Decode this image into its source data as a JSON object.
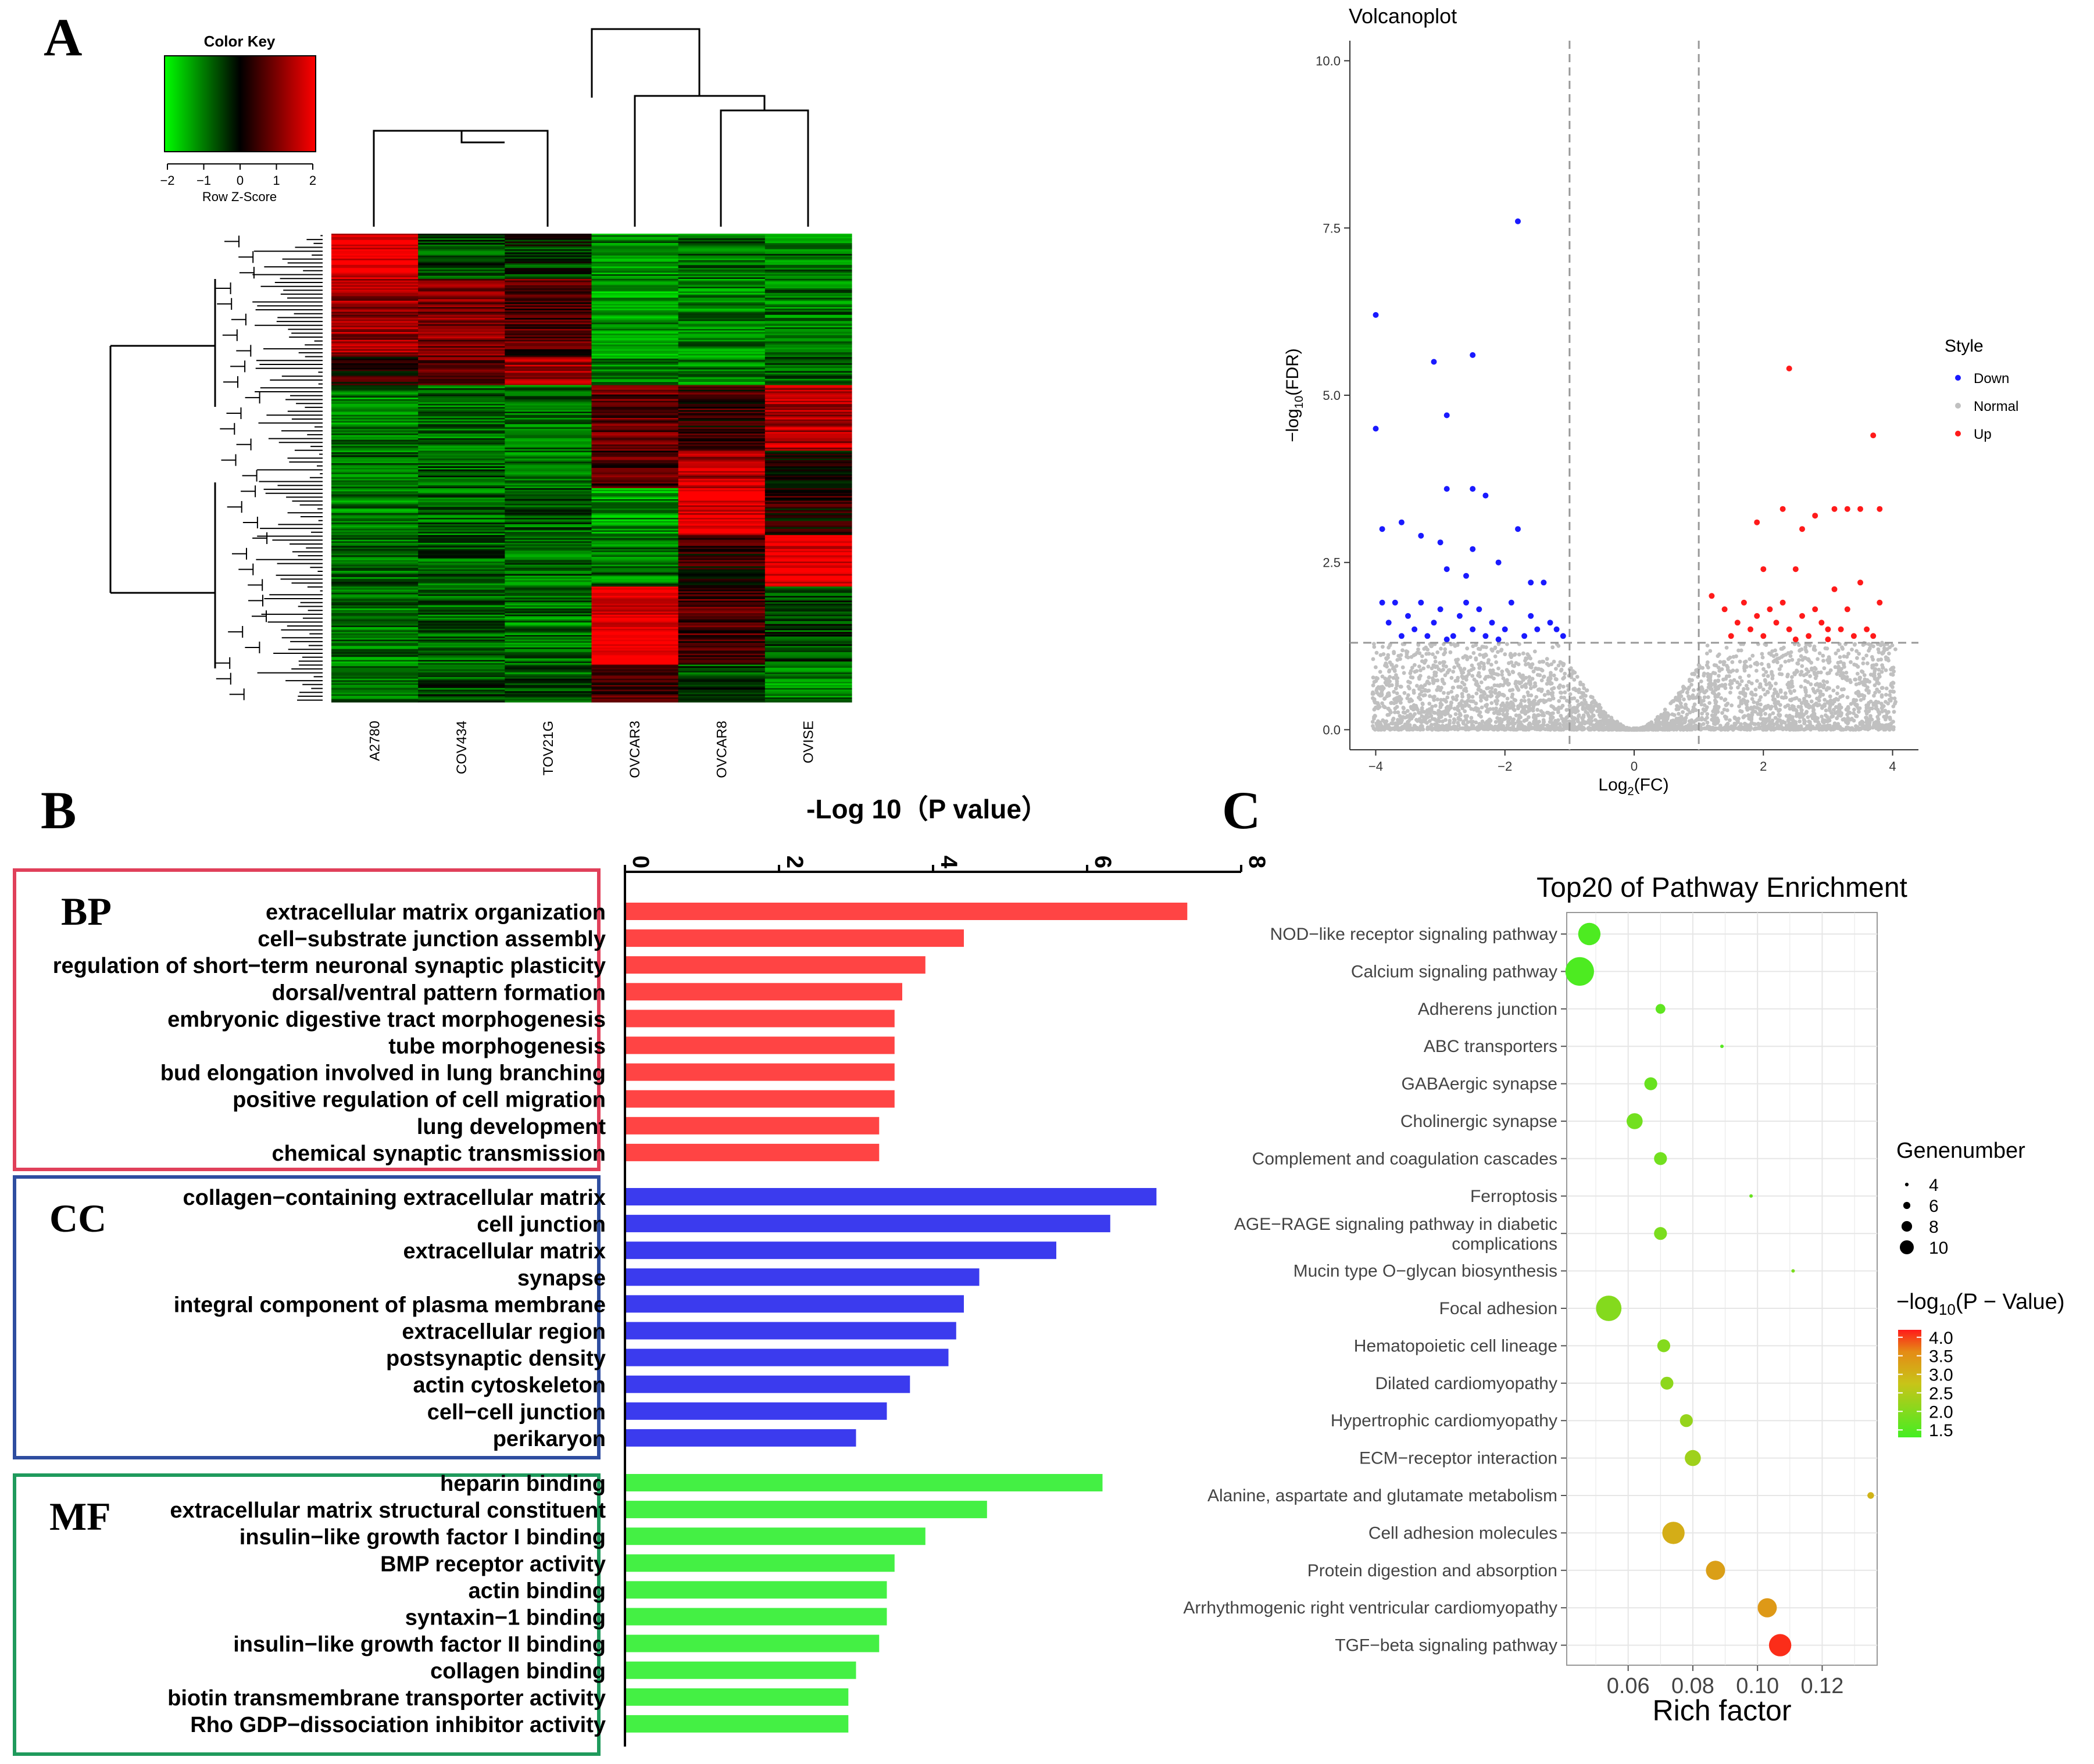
{
  "panels": {
    "a": "A",
    "b": "B",
    "c": "C"
  },
  "chart_data": [
    {
      "type": "heatmap",
      "panel": "A",
      "title": "Color Key",
      "color_key": {
        "label": "Row Z-Score",
        "ticks": [
          "-2",
          "-1",
          "0",
          "1",
          "2"
        ],
        "range": [
          -2,
          2
        ],
        "colors": [
          "#00ff00",
          "#000000",
          "#ff0000"
        ]
      },
      "samples": [
        "A2780",
        "COV434",
        "TOV21G",
        "OVCAR3",
        "OVCAR8",
        "OVISE"
      ],
      "row_blocks": [
        {
          "fraction": 0.095,
          "values": [
            1.8,
            -0.6,
            -0.4,
            -1.0,
            -0.8,
            -0.9
          ]
        },
        {
          "fraction": 0.165,
          "values": [
            1.2,
            1.0,
            0.6,
            -1.2,
            -1.0,
            -0.9
          ]
        },
        {
          "fraction": 0.06,
          "values": [
            0.3,
            0.7,
            1.2,
            -1.1,
            -1.0,
            -0.8
          ]
        },
        {
          "fraction": 0.14,
          "values": [
            -1.0,
            -0.8,
            -0.9,
            0.8,
            0.4,
            1.4
          ]
        },
        {
          "fraction": 0.08,
          "values": [
            -0.8,
            -0.7,
            -0.9,
            0.6,
            1.4,
            0.0
          ]
        },
        {
          "fraction": 0.1,
          "values": [
            -0.9,
            -0.8,
            -0.7,
            -1.2,
            1.8,
            0.2
          ]
        },
        {
          "fraction": 0.11,
          "values": [
            -0.8,
            -0.7,
            -0.8,
            -0.9,
            0.3,
            1.9
          ]
        },
        {
          "fraction": 0.165,
          "values": [
            -0.9,
            -0.8,
            -0.9,
            1.9,
            0.6,
            -0.5
          ]
        },
        {
          "fraction": 0.085,
          "values": [
            -0.7,
            -0.6,
            -0.7,
            0.5,
            -0.6,
            -1.0
          ]
        }
      ]
    },
    {
      "type": "scatter",
      "panel": "A",
      "title": "Volcanoplot",
      "xlabel": "Log2(FC)",
      "ylabel": "−log10(FDR)",
      "xlim": [
        -4.4,
        4.4
      ],
      "ylim": [
        -0.3,
        10.3
      ],
      "xticks": [
        -4,
        -2,
        0,
        2,
        4
      ],
      "yticks": [
        0.0,
        2.5,
        5.0,
        7.5,
        10.0
      ],
      "ytick_labels": [
        "0.0",
        "2.5",
        "5.0",
        "7.5",
        "10.0"
      ],
      "vlines": [
        -1,
        1
      ],
      "hline": 1.3,
      "legend": {
        "title": "Style",
        "entries": [
          "Down",
          "Normal",
          "Up"
        ],
        "position": "right"
      },
      "series": [
        {
          "name": "Down",
          "color": "#1a1aff",
          "points": [
            [
              -4.0,
              6.2
            ],
            [
              -4.0,
              4.5
            ],
            [
              -3.9,
              3.0
            ],
            [
              -3.6,
              3.1
            ],
            [
              -3.1,
              5.5
            ],
            [
              -2.9,
              4.7
            ],
            [
              -2.9,
              3.6
            ],
            [
              -2.5,
              5.6
            ],
            [
              -2.5,
              3.6
            ],
            [
              -2.3,
              3.5
            ],
            [
              -1.8,
              7.6
            ],
            [
              -1.8,
              3.0
            ],
            [
              -3.3,
              2.9
            ],
            [
              -3.0,
              2.8
            ],
            [
              -2.9,
              2.4
            ],
            [
              -2.5,
              2.7
            ],
            [
              -2.6,
              2.3
            ],
            [
              -2.1,
              2.5
            ],
            [
              -1.6,
              2.2
            ],
            [
              -1.4,
              2.2
            ],
            [
              -3.9,
              1.9
            ],
            [
              -3.8,
              1.6
            ],
            [
              -3.7,
              1.9
            ],
            [
              -3.5,
              1.7
            ],
            [
              -3.4,
              1.5
            ],
            [
              -3.3,
              1.9
            ],
            [
              -3.2,
              1.4
            ],
            [
              -3.1,
              1.6
            ],
            [
              -3.0,
              1.8
            ],
            [
              -2.8,
              1.4
            ],
            [
              -2.7,
              1.7
            ],
            [
              -2.6,
              1.9
            ],
            [
              -2.5,
              1.5
            ],
            [
              -2.4,
              1.8
            ],
            [
              -2.3,
              1.4
            ],
            [
              -2.2,
              1.6
            ],
            [
              -2.0,
              1.5
            ],
            [
              -1.9,
              1.9
            ],
            [
              -1.7,
              1.4
            ],
            [
              -1.6,
              1.7
            ],
            [
              -1.5,
              1.5
            ],
            [
              -1.3,
              1.6
            ],
            [
              -1.1,
              1.4
            ],
            [
              -3.6,
              1.4
            ],
            [
              -2.9,
              1.35
            ],
            [
              -2.1,
              1.35
            ],
            [
              -1.2,
              1.5
            ]
          ]
        },
        {
          "name": "Up",
          "color": "#ff1a1a",
          "points": [
            [
              2.4,
              5.4
            ],
            [
              3.7,
              4.4
            ],
            [
              3.5,
              3.3
            ],
            [
              3.3,
              3.3
            ],
            [
              3.1,
              3.3
            ],
            [
              2.8,
              3.2
            ],
            [
              2.3,
              3.3
            ],
            [
              2.6,
              3.0
            ],
            [
              1.9,
              3.1
            ],
            [
              3.8,
              3.3
            ],
            [
              2.0,
              2.4
            ],
            [
              2.5,
              2.4
            ],
            [
              1.2,
              2.0
            ],
            [
              1.4,
              1.8
            ],
            [
              1.6,
              1.6
            ],
            [
              1.7,
              1.9
            ],
            [
              1.8,
              1.5
            ],
            [
              1.9,
              1.7
            ],
            [
              2.0,
              1.4
            ],
            [
              2.1,
              1.8
            ],
            [
              2.2,
              1.6
            ],
            [
              2.3,
              1.9
            ],
            [
              2.4,
              1.5
            ],
            [
              2.6,
              1.7
            ],
            [
              2.7,
              1.4
            ],
            [
              2.8,
              1.8
            ],
            [
              2.9,
              1.6
            ],
            [
              3.0,
              1.5
            ],
            [
              3.1,
              2.1
            ],
            [
              3.2,
              1.5
            ],
            [
              3.3,
              1.8
            ],
            [
              3.4,
              1.4
            ],
            [
              3.5,
              2.2
            ],
            [
              3.6,
              1.5
            ],
            [
              3.8,
              1.9
            ],
            [
              1.5,
              1.4
            ],
            [
              2.5,
              1.35
            ],
            [
              3.0,
              1.35
            ],
            [
              3.7,
              1.4
            ]
          ]
        }
      ]
    },
    {
      "type": "bar",
      "panel": "B",
      "orientation": "horizontal",
      "title": "-Log 10（P value）",
      "xlim": [
        0,
        8
      ],
      "xticks": [
        0,
        2,
        4,
        6,
        8
      ],
      "groups": [
        {
          "name": "BP",
          "color": "#ff4444",
          "box_color": "#e0405a",
          "categories": [
            "extracellular matrix organization",
            "cell−substrate junction assembly",
            "regulation of short−term neuronal synaptic plasticity",
            "dorsal/ventral pattern formation",
            "embryonic digestive tract morphogenesis",
            "tube morphogenesis",
            "bud elongation involved in lung branching",
            "positive regulation of cell migration",
            "lung development",
            "chemical synaptic transmission"
          ],
          "values": [
            7.3,
            4.4,
            3.9,
            3.6,
            3.5,
            3.5,
            3.5,
            3.5,
            3.3,
            3.3
          ]
        },
        {
          "name": "CC",
          "color": "#3b3bee",
          "box_color": "#2e4da0",
          "categories": [
            "collagen−containing extracellular matrix",
            "cell junction",
            "extracellular matrix",
            "synapse",
            "integral component of plasma membrane",
            "extracellular region",
            "postsynaptic density",
            "actin cytoskeleton",
            "cell−cell junction",
            "perikaryon"
          ],
          "values": [
            6.9,
            6.3,
            5.6,
            4.6,
            4.4,
            4.3,
            4.2,
            3.7,
            3.4,
            3.0
          ]
        },
        {
          "name": "MF",
          "color": "#44f044",
          "box_color": "#1f9a5c",
          "categories": [
            "heparin binding",
            "extracellular matrix structural constituent",
            "insulin−like growth factor I binding",
            "BMP receptor activity",
            "actin binding",
            "syntaxin−1 binding",
            "insulin−like growth factor II binding",
            "collagen binding",
            "biotin transmembrane transporter activity",
            "Rho GDP−dissociation inhibitor activity"
          ],
          "values": [
            6.2,
            4.7,
            3.9,
            3.5,
            3.4,
            3.4,
            3.3,
            3.0,
            2.9,
            2.9
          ]
        }
      ]
    },
    {
      "type": "scatter",
      "panel": "C",
      "title": "Top20 of Pathway Enrichment",
      "xlabel": "Rich factor",
      "xlim": [
        0.041,
        0.137
      ],
      "xticks": [
        0.06,
        0.08,
        0.1,
        0.12
      ],
      "xtick_labels": [
        "0.06",
        "0.08",
        "0.10",
        "0.12"
      ],
      "size_legend": {
        "title": "Genenumber",
        "values": [
          4,
          6,
          8,
          10
        ],
        "labels": [
          "4",
          "6",
          "8",
          "10"
        ]
      },
      "color_legend": {
        "title": "−log10(P − Value)",
        "ticks": [
          1.5,
          2.0,
          2.5,
          3.0,
          3.5,
          4.0
        ],
        "tick_labels": [
          "1.5",
          "2.0",
          "2.5",
          "3.0",
          "3.5",
          "4.0"
        ],
        "range": [
          1.3,
          4.2
        ]
      },
      "pathways": [
        {
          "name": "NOD−like receptor signaling pathway",
          "rich": 0.048,
          "genes": 9,
          "p": 1.4
        },
        {
          "name": "Calcium signaling pathway",
          "rich": 0.045,
          "genes": 11,
          "p": 1.4
        },
        {
          "name": "Adherens junction",
          "rich": 0.07,
          "genes": 5,
          "p": 1.6
        },
        {
          "name": "ABC transporters",
          "rich": 0.089,
          "genes": 3,
          "p": 1.5
        },
        {
          "name": "GABAergic synapse",
          "rich": 0.067,
          "genes": 6,
          "p": 1.7
        },
        {
          "name": "Cholinergic synapse",
          "rich": 0.062,
          "genes": 7,
          "p": 1.8
        },
        {
          "name": "Complement and coagulation cascades",
          "rich": 0.07,
          "genes": 6,
          "p": 1.8
        },
        {
          "name": "Ferroptosis",
          "rich": 0.098,
          "genes": 3,
          "p": 1.7
        },
        {
          "name": "AGE−RAGE signaling pathway in diabetic complications",
          "label_lines": [
            "AGE−RAGE signaling pathway in diabetic",
            "complications"
          ],
          "rich": 0.07,
          "genes": 6,
          "p": 1.9
        },
        {
          "name": "Mucin type O−glycan biosynthesis",
          "rich": 0.111,
          "genes": 3,
          "p": 1.9
        },
        {
          "name": "Focal adhesion",
          "rich": 0.054,
          "genes": 10,
          "p": 2.0
        },
        {
          "name": "Hematopoietic cell lineage",
          "rich": 0.071,
          "genes": 6,
          "p": 2.0
        },
        {
          "name": "Dilated cardiomyopathy",
          "rich": 0.072,
          "genes": 6,
          "p": 2.1
        },
        {
          "name": "Hypertrophic cardiomyopathy",
          "rich": 0.078,
          "genes": 6,
          "p": 2.2
        },
        {
          "name": "ECM−receptor interaction",
          "rich": 0.08,
          "genes": 7,
          "p": 2.3
        },
        {
          "name": "Alanine, aspartate and glutamate metabolism",
          "rich": 0.135,
          "genes": 4,
          "p": 3.0
        },
        {
          "name": "Cell adhesion molecules",
          "rich": 0.074,
          "genes": 9,
          "p": 3.1
        },
        {
          "name": "Protein digestion and absorption",
          "rich": 0.087,
          "genes": 8,
          "p": 3.3
        },
        {
          "name": "Arrhythmogenic right ventricular cardiomyopathy",
          "rich": 0.103,
          "genes": 8,
          "p": 3.4
        },
        {
          "name": "TGF−beta signaling pathway",
          "rich": 0.107,
          "genes": 9,
          "p": 4.1
        }
      ]
    }
  ]
}
